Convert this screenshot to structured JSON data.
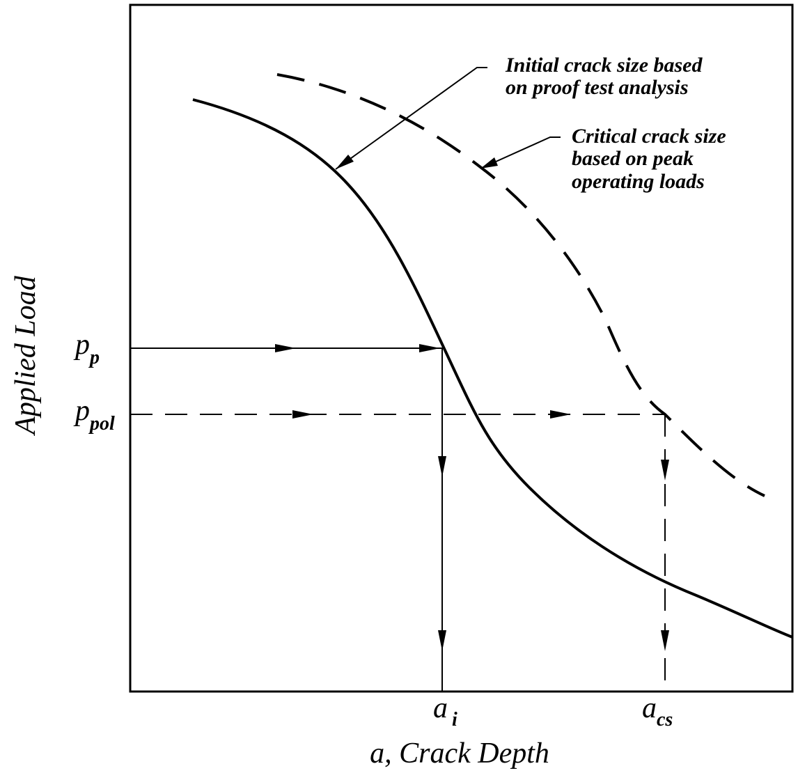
{
  "axes": {
    "x_label": "a, Crack Depth",
    "y_label": "Applied Load"
  },
  "annotations": [
    {
      "lines": [
        "Initial crack size based",
        "on proof test analysis"
      ]
    },
    {
      "lines": [
        "Critical crack size",
        "based on peak",
        "operating loads"
      ]
    }
  ],
  "markers": {
    "proof_load": {
      "symbol": "p",
      "subscript": "p"
    },
    "peak_load": {
      "symbol": "p",
      "subscript": "pol"
    },
    "initial_crack": {
      "symbol": "a",
      "subscript": "i"
    },
    "critical_crack": {
      "symbol": "a",
      "subscript": "cs"
    }
  }
}
